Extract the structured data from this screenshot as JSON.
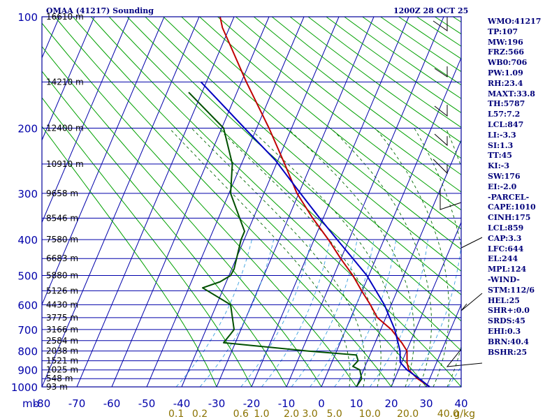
{
  "header": {
    "station": "OMAA (41217) Sounding",
    "time": "1200Z 28 OCT 25"
  },
  "stats": [
    "WMO:41217",
    "TP:107",
    "MW:196",
    "FRZ:566",
    "WB0:706",
    "PW:1.09",
    "RH:23.4",
    "MAXT:33.8",
    "TH:5787",
    "L57:7.2",
    "LCL:847",
    "LI:-3.3",
    "SI:1.3",
    "TT:45",
    "KI:-3",
    "SW:176",
    "EI:-2.0",
    "-PARCEL-",
    "CAPE:1010",
    "CINH:175",
    "LCL:859",
    "CAP:3.3",
    "LFC:644",
    "EL:244",
    "MPL:124",
    "-WIND-",
    "STM:112/6",
    "HEL:25",
    "SHR+:0.0",
    "SRDS:45",
    "EHI:0.3",
    "BRN:40.4",
    "BSHR:25"
  ],
  "colors": {
    "frame": "#00009a",
    "isotherm": "#0000aa",
    "isobar": "#0000aa",
    "dry_adiabat": "#00a000",
    "moist_adiabat": "#006a00",
    "mixing_ratio": "#3aa0e0",
    "temperature": "#c00000",
    "parcel": "#0000c0",
    "dewpoint": "#005000",
    "wind": "#000000",
    "mixing_label": "#8a7200"
  },
  "chart_data": {
    "type": "line",
    "title": "OMAA (41217) Sounding",
    "subtitle": "1200Z 28 OCT 25",
    "xlabel": "",
    "ylabel": "mb",
    "x_unit_ticks": [
      -80,
      -70,
      -60,
      -50,
      -40,
      -30,
      -20,
      -10,
      0,
      10,
      20,
      30,
      40
    ],
    "pressure_ticks": [
      100,
      200,
      300,
      400,
      500,
      600,
      700,
      800,
      900,
      1000
    ],
    "xlim": [
      -80,
      40
    ],
    "ylim": [
      1000,
      100
    ],
    "skew_deg_per_100mb": 5,
    "height_labels": [
      {
        "p": 100,
        "label": "16610 m"
      },
      {
        "p": 150,
        "label": "14210 m"
      },
      {
        "p": 200,
        "label": "12400 m"
      },
      {
        "p": 250,
        "label": "10910 m"
      },
      {
        "p": 300,
        "label": "9658 m"
      },
      {
        "p": 350,
        "label": "8546 m"
      },
      {
        "p": 400,
        "label": "7580 m"
      },
      {
        "p": 450,
        "label": "6683 m"
      },
      {
        "p": 500,
        "label": "5880 m"
      },
      {
        "p": 550,
        "label": "5126 m"
      },
      {
        "p": 600,
        "label": "4430 m"
      },
      {
        "p": 650,
        "label": "3775 m"
      },
      {
        "p": 700,
        "label": "3166 m"
      },
      {
        "p": 750,
        "label": "2584 m"
      },
      {
        "p": 800,
        "label": "2038 m"
      },
      {
        "p": 850,
        "label": "1521 m"
      },
      {
        "p": 900,
        "label": "1025 m"
      },
      {
        "p": 950,
        "label": "548 m"
      },
      {
        "p": 1000,
        "label": "93 m"
      }
    ],
    "mixing_ratio_labels": [
      {
        "w": 0.1,
        "label": "0.1"
      },
      {
        "w": 0.2,
        "label": "0.2"
      },
      {
        "w": 0.6,
        "label": "0.6"
      },
      {
        "w": 1.0,
        "label": "1.0"
      },
      {
        "w": 2.0,
        "label": "2.0"
      },
      {
        "w": 3.0,
        "label": "3.0"
      },
      {
        "w": 5.0,
        "label": "5.0"
      },
      {
        "w": 10.0,
        "label": "10.0"
      },
      {
        "w": 20.0,
        "label": "20.0"
      },
      {
        "w": 40.0,
        "label": "40.0"
      }
    ],
    "mixing_unit": "g/kg",
    "series": [
      {
        "key": "temperature",
        "points": [
          {
            "p": 1000,
            "t": 31
          },
          {
            "p": 950,
            "t": 25
          },
          {
            "p": 900,
            "t": 20
          },
          {
            "p": 860,
            "t": 17.5
          },
          {
            "p": 850,
            "t": 17
          },
          {
            "p": 800,
            "t": 14.5
          },
          {
            "p": 760,
            "t": 11
          },
          {
            "p": 750,
            "t": 10
          },
          {
            "p": 700,
            "t": 5
          },
          {
            "p": 650,
            "t": -1.5
          },
          {
            "p": 600,
            "t": -6
          },
          {
            "p": 550,
            "t": -11
          },
          {
            "p": 500,
            "t": -16
          },
          {
            "p": 450,
            "t": -22
          },
          {
            "p": 400,
            "t": -28
          },
          {
            "p": 350,
            "t": -35
          },
          {
            "p": 300,
            "t": -42
          },
          {
            "p": 250,
            "t": -48
          },
          {
            "p": 200,
            "t": -55
          },
          {
            "p": 150,
            "t": -64
          },
          {
            "p": 120,
            "t": -70
          },
          {
            "p": 107,
            "t": -73
          },
          {
            "p": 100,
            "t": -74
          }
        ]
      },
      {
        "key": "dewpoint",
        "points": [
          {
            "p": 1000,
            "t": 10
          },
          {
            "p": 950,
            "t": 9
          },
          {
            "p": 900,
            "t": 6
          },
          {
            "p": 880,
            "t": 3
          },
          {
            "p": 850,
            "t": 3
          },
          {
            "p": 820,
            "t": 1
          },
          {
            "p": 800,
            "t": -14
          },
          {
            "p": 760,
            "t": -40
          },
          {
            "p": 720,
            "t": -40
          },
          {
            "p": 700,
            "t": -40
          },
          {
            "p": 600,
            "t": -46
          },
          {
            "p": 540,
            "t": -57
          },
          {
            "p": 520,
            "t": -53
          },
          {
            "p": 500,
            "t": -51
          },
          {
            "p": 480,
            "t": -51
          },
          {
            "p": 400,
            "t": -53
          },
          {
            "p": 380,
            "t": -53
          },
          {
            "p": 300,
            "t": -61
          },
          {
            "p": 250,
            "t": -63
          },
          {
            "p": 200,
            "t": -68
          },
          {
            "p": 160,
            "t": -80
          }
        ]
      },
      {
        "key": "parcel",
        "points": [
          {
            "p": 1000,
            "t": 31
          },
          {
            "p": 950,
            "t": 25.5
          },
          {
            "p": 900,
            "t": 19.5
          },
          {
            "p": 859,
            "t": 15.5
          },
          {
            "p": 800,
            "t": 12.5
          },
          {
            "p": 700,
            "t": 6
          },
          {
            "p": 600,
            "t": -2
          },
          {
            "p": 500,
            "t": -12
          },
          {
            "p": 450,
            "t": -18.5
          },
          {
            "p": 400,
            "t": -25.5
          },
          {
            "p": 350,
            "t": -33
          },
          {
            "p": 300,
            "t": -41
          },
          {
            "p": 244,
            "t": -51
          },
          {
            "p": 200,
            "t": -62
          },
          {
            "p": 150,
            "t": -77
          }
        ]
      }
    ]
  }
}
